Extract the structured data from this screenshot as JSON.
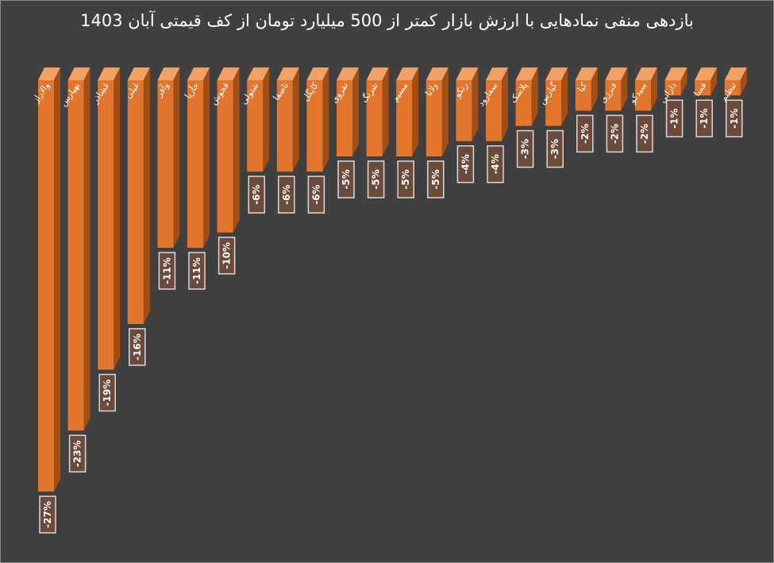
{
  "chart_data": {
    "type": "bar",
    "title": "بازدهی منفی نمادهایی با ارزش بازار کمتر از 500 میلیارد تومان از کف قیمتی آبان 1403",
    "xlabel": "",
    "ylabel": "",
    "ylim": [
      -27,
      0
    ],
    "grid": false,
    "legend": "none",
    "categories": [
      "والاراز",
      "بهپارس",
      "غشاذر",
      "غیلی",
      "وآفر",
      "حآریا",
      "فجوش",
      "شتولی",
      "تاصفا",
      "کایگل",
      "تفروی",
      "شزنگ",
      "مسیم",
      "ولانا",
      "رتکو",
      "سفارود",
      "پلاسک",
      "گپارس",
      "کیا",
      "فنرژی",
      "سیدکو",
      "دارابی",
      "فسا",
      "تنظیم"
    ],
    "values": [
      -27,
      -23,
      -19,
      -16,
      -11,
      -11,
      -10,
      -6,
      -6,
      -6,
      -5,
      -5,
      -5,
      -5,
      -4,
      -4,
      -3,
      -3,
      -2,
      -2,
      -2,
      -1,
      -1,
      -1
    ],
    "data_labels": [
      "-27%",
      "-23%",
      "-19%",
      "-16%",
      "-11%",
      "-11%",
      "-10%",
      "-6%",
      "-6%",
      "-6%",
      "-5%",
      "-5%",
      "-5%",
      "-5%",
      "-4%",
      "-4%",
      "-3%",
      "-3%",
      "-2%",
      "-2%",
      "-2%",
      "-1%",
      "-1%",
      "-1%"
    ],
    "colors": {
      "background": "#404040",
      "bar_front": "#E2762D",
      "bar_side": "#A34E14",
      "bar_top": "#F0A163",
      "label_box": "#6B4A3A",
      "label_border": "#D9D9D9",
      "text": "#FFFFFF"
    }
  }
}
